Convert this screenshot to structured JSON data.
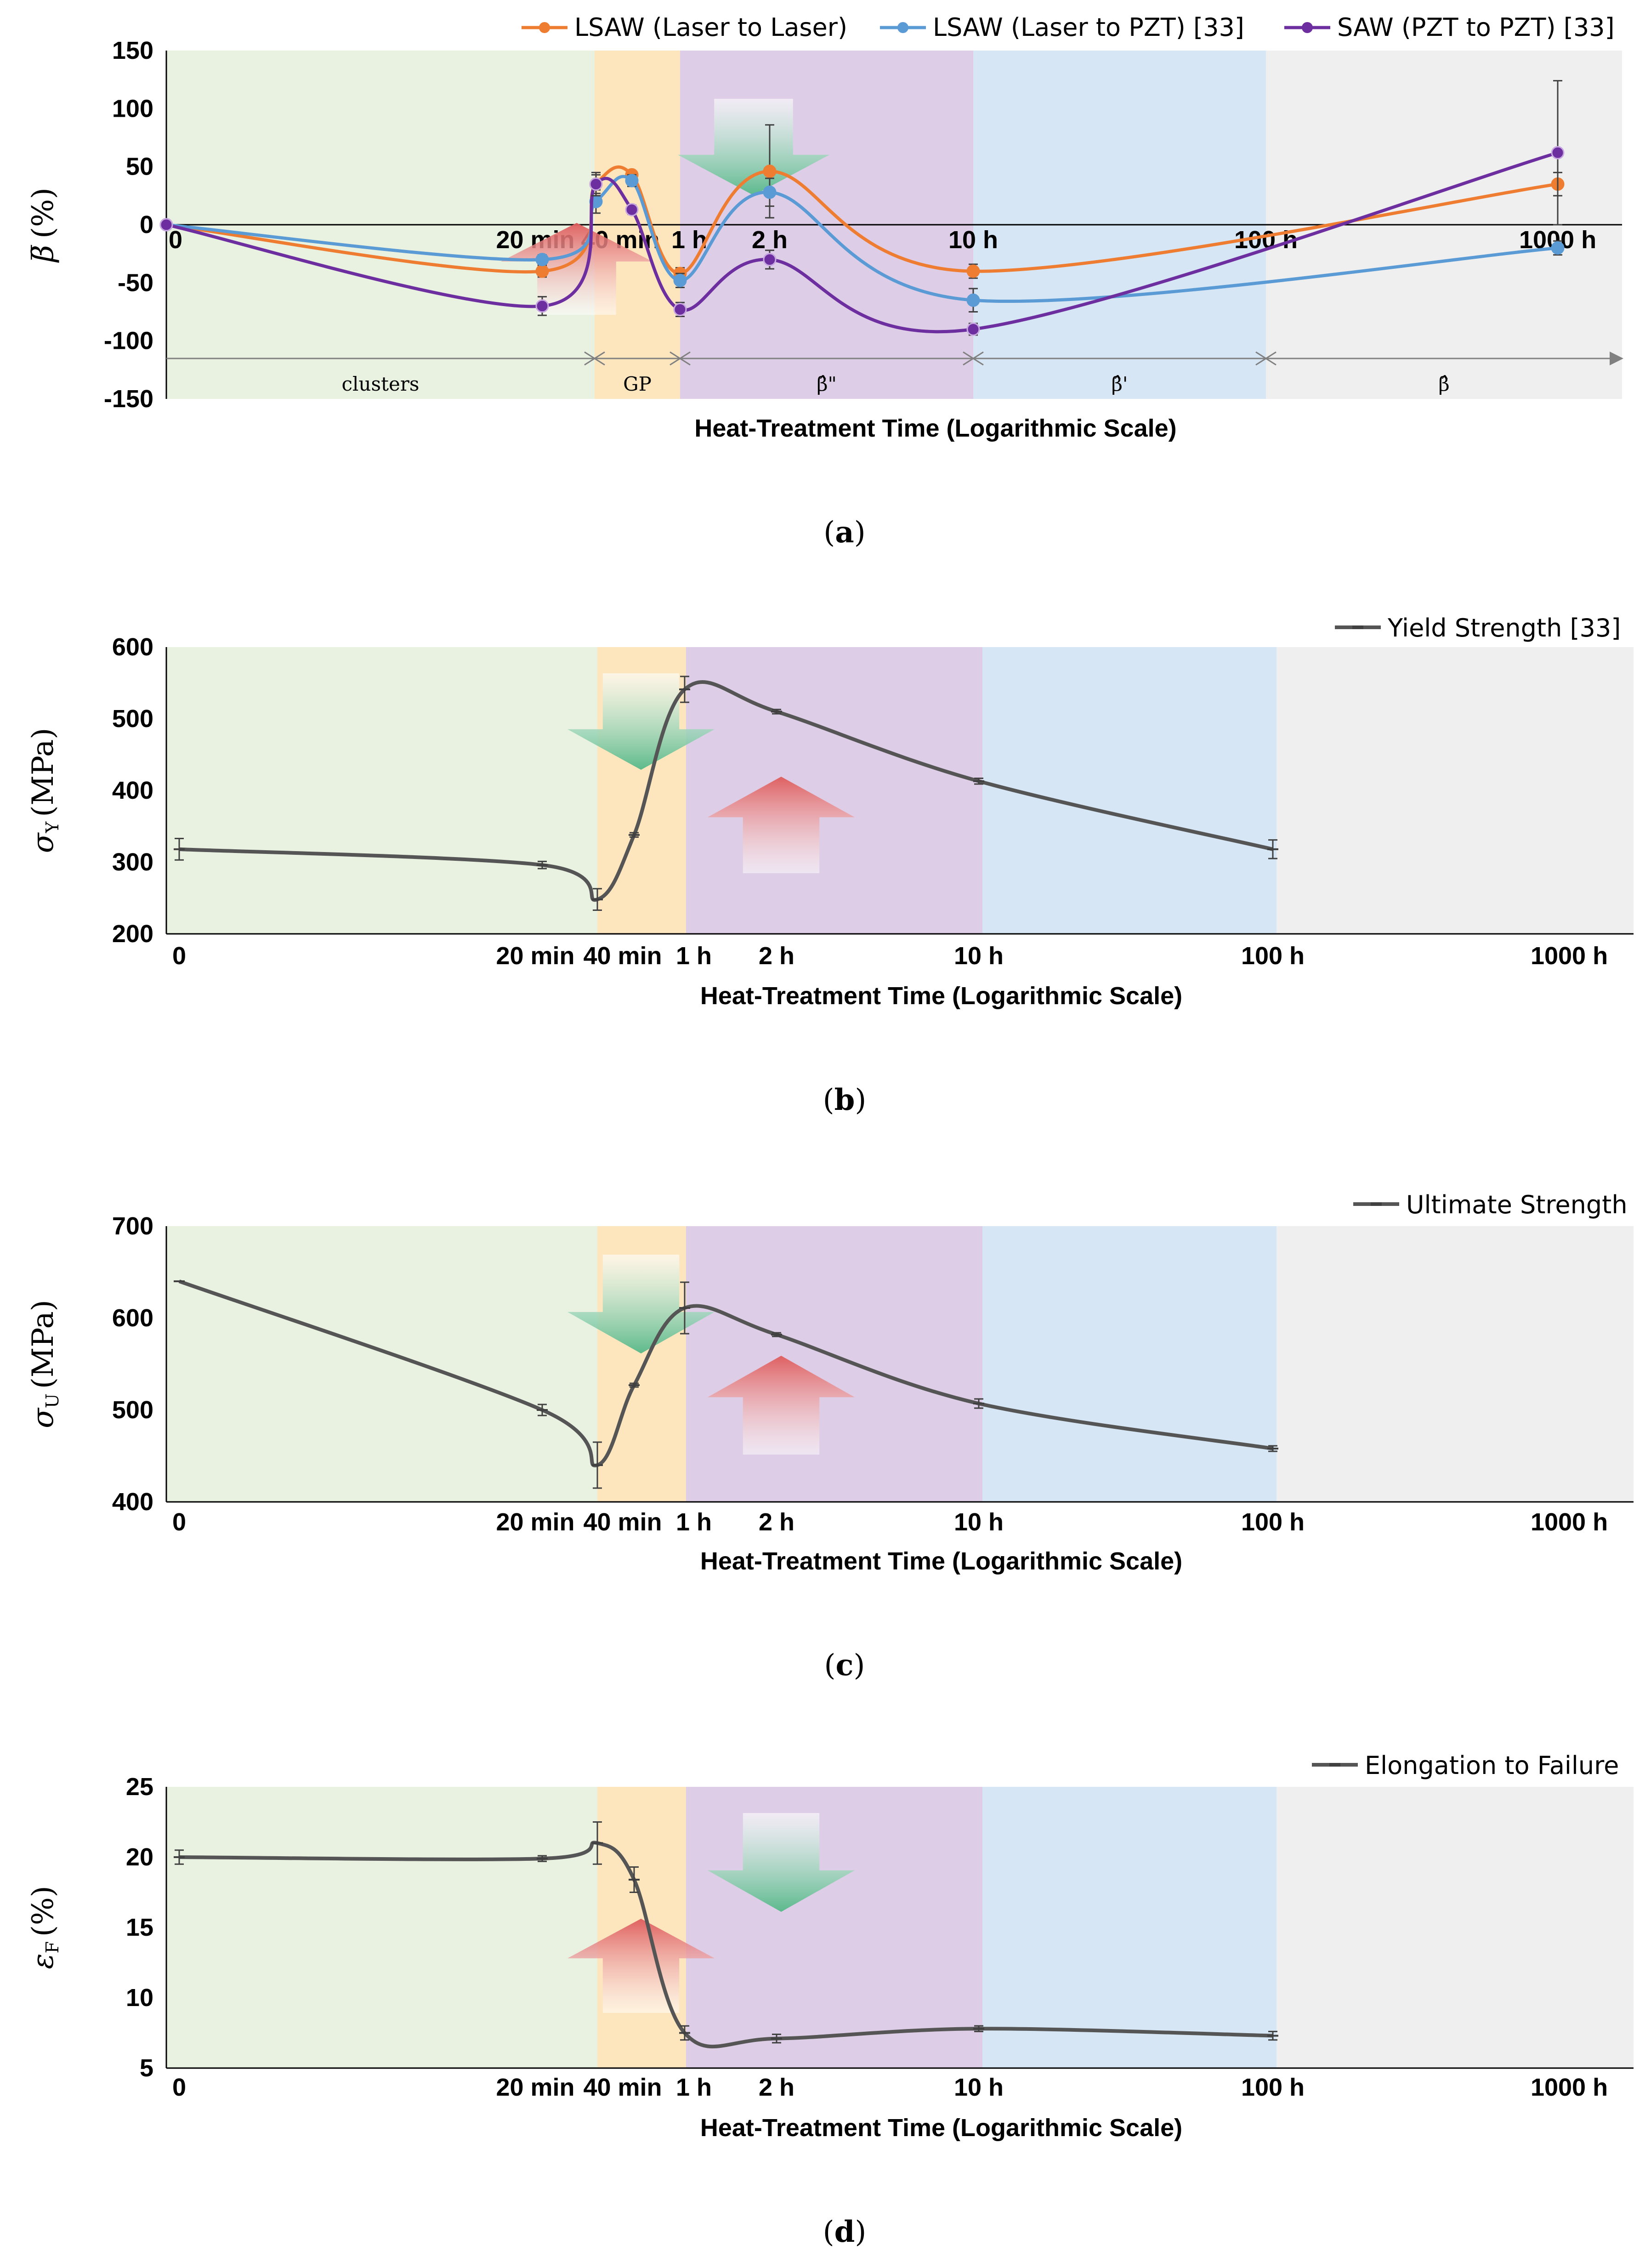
{
  "chart_data": [
    {
      "id": "a",
      "type": "line",
      "caption_letter": "a",
      "xlabel": "Heat-Treatment Time (Logarithmic Scale)",
      "ylabel_symbol": "β̅",
      "ylabel_unit": "(%)",
      "ylim": [
        -150,
        150
      ],
      "yticks": [
        -150,
        -100,
        -50,
        0,
        50,
        100,
        150
      ],
      "x_categories": [
        "0",
        "20 min",
        "40 min",
        "1 h",
        "2 h",
        "10 h",
        "100 h",
        "1000 h"
      ],
      "phases": [
        {
          "label": "clusters",
          "color": "#e9f2e1"
        },
        {
          "label": "GP",
          "color": "#fde6bd"
        },
        {
          "label": "β̂\"",
          "color": "#ddcde6"
        },
        {
          "label": "β̂'",
          "color": "#d6e6f5"
        },
        {
          "label": "β̂",
          "color": "#efefef"
        }
      ],
      "series": [
        {
          "name": "LSAW (Laser to Laser)",
          "color": "#ee7d31",
          "x": [
            0,
            1,
            1.6,
            2,
            3,
            4,
            5,
            6,
            7
          ],
          "values": [
            0,
            -40,
            35,
            43,
            -42,
            46,
            -40,
            null,
            35
          ],
          "errors": [
            0,
            5,
            8,
            3,
            5,
            40,
            6,
            null,
            10
          ]
        },
        {
          "name": "LSAW (Laser to PZT) [33]",
          "color": "#5a9ad5",
          "x": [
            0,
            1,
            1.6,
            2,
            3,
            4,
            5,
            7
          ],
          "values": [
            0,
            -30,
            20,
            38,
            -48,
            28,
            -65,
            -20
          ],
          "errors": [
            0,
            4,
            10,
            5,
            6,
            12,
            10,
            6
          ]
        },
        {
          "name": "SAW (PZT to PZT) [33]",
          "color": "#6d2f9f",
          "x": [
            0,
            1,
            1.6,
            2,
            3,
            4,
            5,
            7
          ],
          "values": [
            0,
            -70,
            35,
            13,
            -73,
            -30,
            -90,
            62
          ],
          "errors": [
            0,
            8,
            10,
            4,
            6,
            8,
            5,
            62
          ]
        }
      ]
    },
    {
      "id": "b",
      "type": "line",
      "caption_letter": "b",
      "xlabel": "Heat-Treatment Time (Logarithmic Scale)",
      "ylabel_symbol": "σ",
      "ylabel_sub": "Y",
      "ylabel_unit": "(MPa)",
      "ylim": [
        200,
        600
      ],
      "yticks": [
        200,
        300,
        400,
        500,
        600
      ],
      "x_categories": [
        "0",
        "20 min",
        "40 min",
        "1 h",
        "2 h",
        "10 h",
        "100 h",
        "1000 h"
      ],
      "series": [
        {
          "name": "Yield Strength [33]",
          "color": "#555555",
          "x": [
            0,
            1,
            1.6,
            2,
            3,
            4,
            5,
            6
          ],
          "values": [
            318,
            296,
            248,
            338,
            541,
            510,
            413,
            318
          ],
          "errors": [
            15,
            5,
            15,
            3,
            18,
            3,
            4,
            13
          ]
        }
      ]
    },
    {
      "id": "c",
      "type": "line",
      "caption_letter": "c",
      "xlabel": "Heat-Treatment Time (Logarithmic Scale)",
      "ylabel_symbol": "σ",
      "ylabel_sub": "U",
      "ylabel_unit": "(MPa)",
      "ylim": [
        400,
        700
      ],
      "yticks": [
        400,
        500,
        600,
        700
      ],
      "x_categories": [
        "0",
        "20 min",
        "40 min",
        "1 h",
        "2 h",
        "10 h",
        "100 h",
        "1000 h"
      ],
      "series": [
        {
          "name": "Ultimate Strength",
          "color": "#555555",
          "x": [
            0,
            1,
            1.6,
            2,
            3,
            4,
            5,
            6
          ],
          "values": [
            640,
            500,
            440,
            527,
            611,
            582,
            507,
            458
          ],
          "errors": [
            0,
            6,
            25,
            2,
            28,
            2,
            5,
            3
          ]
        }
      ]
    },
    {
      "id": "d",
      "type": "line",
      "caption_letter": "d",
      "xlabel": "Heat-Treatment Time (Logarithmic Scale)",
      "ylabel_symbol": "ε",
      "ylabel_sub": "F",
      "ylabel_unit": "(%)",
      "ylim": [
        5,
        25
      ],
      "yticks": [
        5,
        10,
        15,
        20,
        25
      ],
      "x_categories": [
        "0",
        "20 min",
        "40 min",
        "1 h",
        "2 h",
        "10 h",
        "100 h",
        "1000 h"
      ],
      "series": [
        {
          "name": "Elongation to Failure",
          "color": "#555555",
          "x": [
            0,
            1,
            1.6,
            2,
            3,
            4,
            5,
            6
          ],
          "values": [
            20,
            19.9,
            21,
            18.4,
            7.5,
            7.1,
            7.8,
            7.3
          ],
          "errors": [
            0.5,
            0.2,
            1.5,
            0.9,
            0.5,
            0.3,
            0.2,
            0.3
          ]
        }
      ]
    }
  ],
  "colors": {
    "arrow_down": "#57b98a",
    "arrow_up": "#e06060"
  }
}
